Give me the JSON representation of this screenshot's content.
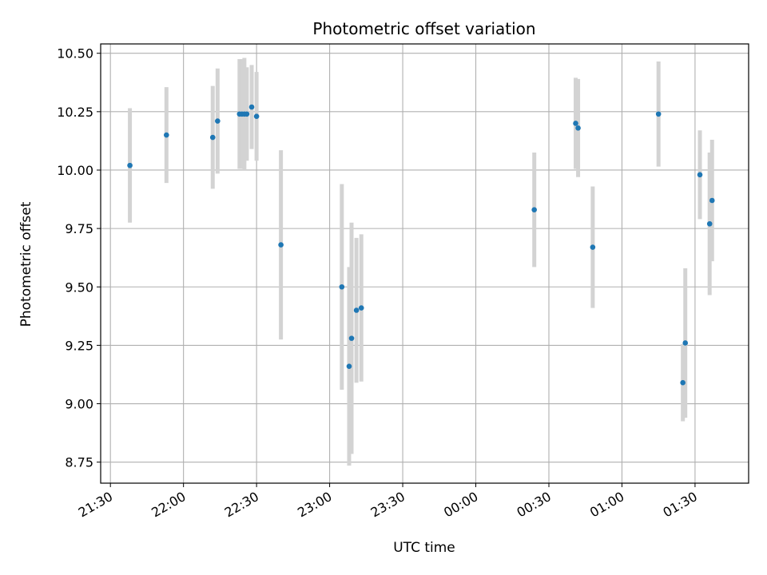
{
  "chart_data": {
    "type": "scatter",
    "title": "Photometric offset variation",
    "xlabel": "UTC time",
    "ylabel": "Photometric offset",
    "x_ticks": [
      "21:30",
      "22:00",
      "22:30",
      "23:00",
      "23:30",
      "00:00",
      "00:30",
      "01:00",
      "01:30"
    ],
    "x_tick_minutes": [
      0,
      30,
      60,
      90,
      120,
      150,
      180,
      210,
      240
    ],
    "y_ticks": [
      "8.75",
      "9.00",
      "9.25",
      "9.50",
      "9.75",
      "10.00",
      "10.25",
      "10.50"
    ],
    "xlim": [
      "21:26",
      "01:52"
    ],
    "ylim": [
      8.66,
      10.54
    ],
    "grid": true,
    "marker_color": "#1f77b4",
    "errorbar_color": "#d3d3d3",
    "points": [
      {
        "x": "21:38",
        "y": 10.02,
        "err": 0.245
      },
      {
        "x": "21:53",
        "y": 10.15,
        "err": 0.205
      },
      {
        "x": "22:12",
        "y": 10.14,
        "err": 0.22
      },
      {
        "x": "22:14",
        "y": 10.21,
        "err": 0.225
      },
      {
        "x": "22:23",
        "y": 10.24,
        "err": 0.235
      },
      {
        "x": "22:24",
        "y": 10.24,
        "err": 0.235
      },
      {
        "x": "22:25",
        "y": 10.24,
        "err": 0.24
      },
      {
        "x": "22:26",
        "y": 10.24,
        "err": 0.2
      },
      {
        "x": "22:28",
        "y": 10.27,
        "err": 0.18
      },
      {
        "x": "22:30",
        "y": 10.23,
        "err": 0.19
      },
      {
        "x": "22:40",
        "y": 9.68,
        "err": 0.405
      },
      {
        "x": "23:05",
        "y": 9.5,
        "err": 0.44
      },
      {
        "x": "23:08",
        "y": 9.16,
        "err": 0.425
      },
      {
        "x": "23:09",
        "y": 9.28,
        "err": 0.495
      },
      {
        "x": "23:11",
        "y": 9.4,
        "err": 0.31
      },
      {
        "x": "23:13",
        "y": 9.41,
        "err": 0.315
      },
      {
        "x": "00:24",
        "y": 9.83,
        "err": 0.245
      },
      {
        "x": "00:41",
        "y": 10.2,
        "err": 0.195
      },
      {
        "x": "00:42",
        "y": 10.18,
        "err": 0.21
      },
      {
        "x": "00:48",
        "y": 9.67,
        "err": 0.26
      },
      {
        "x": "01:15",
        "y": 10.24,
        "err": 0.225
      },
      {
        "x": "01:25",
        "y": 9.09,
        "err": 0.165
      },
      {
        "x": "01:26",
        "y": 9.26,
        "err": 0.32
      },
      {
        "x": "01:32",
        "y": 9.98,
        "err": 0.19
      },
      {
        "x": "01:36",
        "y": 9.77,
        "err": 0.305
      },
      {
        "x": "01:37",
        "y": 9.87,
        "err": 0.26
      }
    ]
  }
}
